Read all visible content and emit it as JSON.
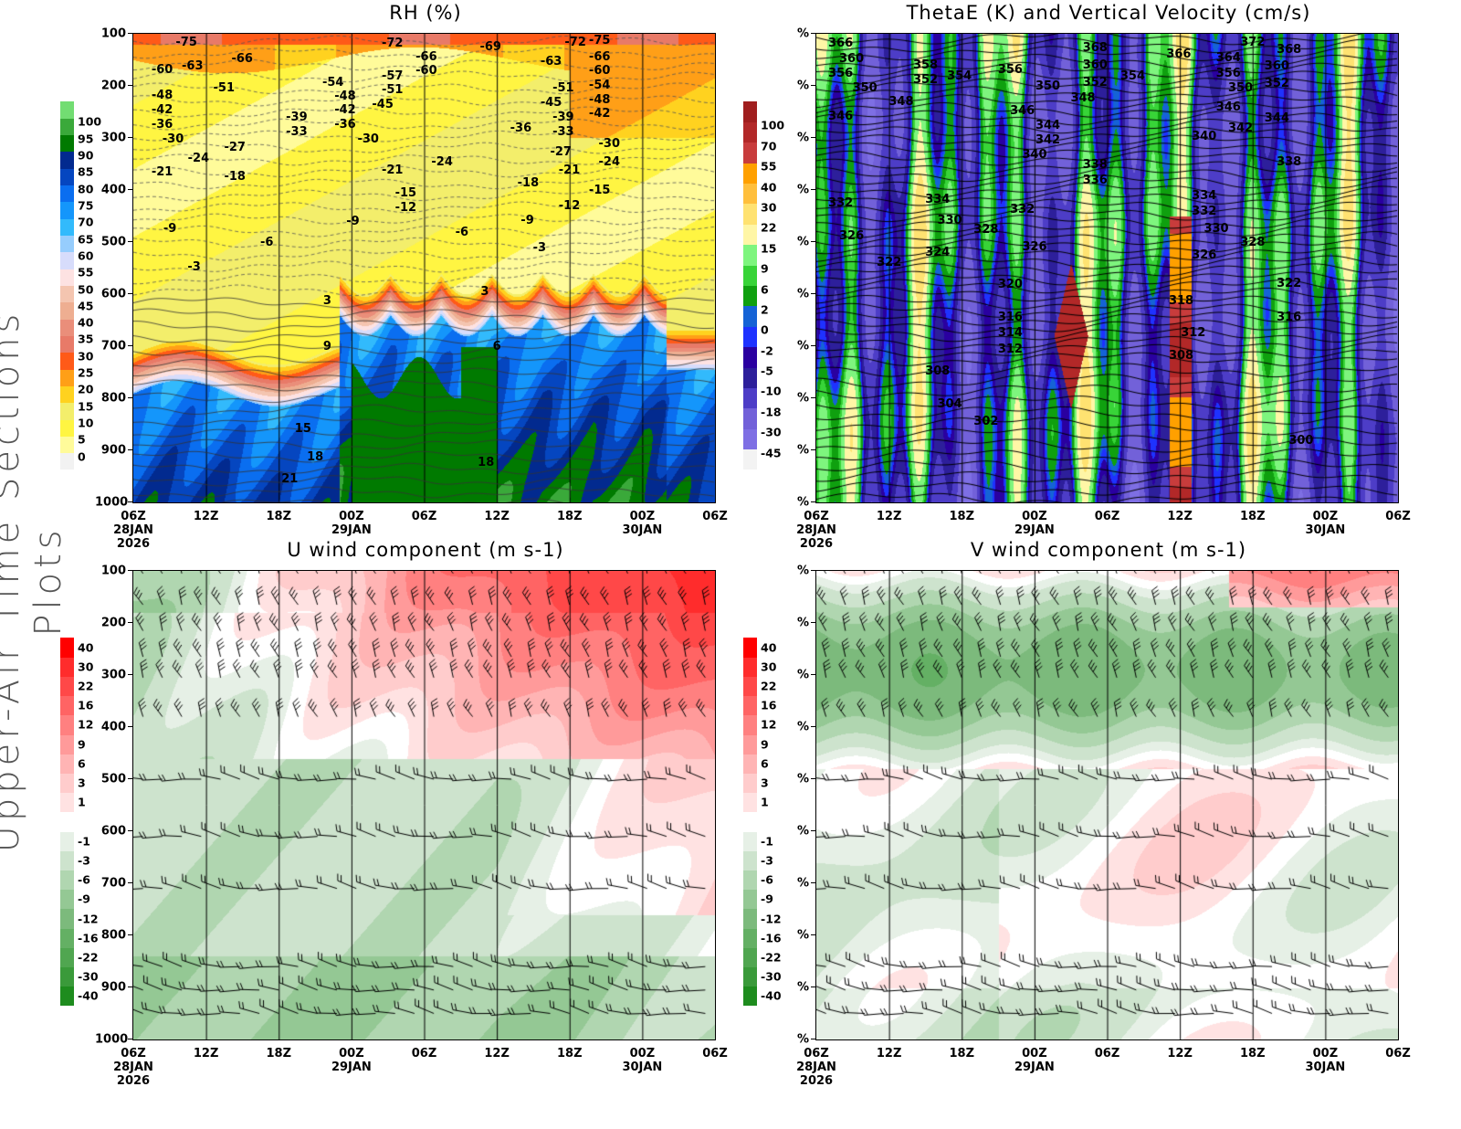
{
  "side_title": "Upper-Air Time Sections Plots",
  "time_ticks": [
    "06Z",
    "12Z",
    "18Z",
    "00Z",
    "06Z",
    "12Z",
    "18Z",
    "00Z",
    "06Z"
  ],
  "date_labels": [
    {
      "index": 0,
      "lines": [
        "28JAN",
        "2026"
      ]
    },
    {
      "index": 3,
      "lines": [
        "29JAN"
      ]
    },
    {
      "index": 7,
      "lines": [
        "30JAN"
      ]
    }
  ],
  "chart_data": [
    {
      "id": "rh",
      "type": "heatmap",
      "title": "RH (%)",
      "x_range_hours": [
        0,
        48
      ],
      "ylim": [
        1000,
        100
      ],
      "y_ticks": [
        "100",
        "200",
        "300",
        "400",
        "500",
        "600",
        "700",
        "800",
        "900",
        "1000"
      ],
      "colorbar": {
        "labels": [
          "0",
          "5",
          "10",
          "15",
          "20",
          "25",
          "30",
          "35",
          "40",
          "45",
          "50",
          "55",
          "60",
          "65",
          "70",
          "75",
          "80",
          "85",
          "90",
          "95",
          "100"
        ],
        "colors": [
          "#f2f2f2",
          "#fffb9a",
          "#fff542",
          "#f3ee6b",
          "#ffd21f",
          "#ff9f17",
          "#ff5a18",
          "#e87a68",
          "#ea8e7a",
          "#eeae91",
          "#f4c5b0",
          "#fde2e2",
          "#d7dcfb",
          "#96cdfd",
          "#32bafc",
          "#1496fb",
          "#0a6ef0",
          "#0546c0",
          "#022a8f",
          "#007a00",
          "#3aa93a",
          "#72dd72"
        ]
      },
      "contour_labels": [
        {
          "t": 4.4,
          "p": 116,
          "v": "-75"
        },
        {
          "t": 9.0,
          "p": 149,
          "v": "-66"
        },
        {
          "t": 21.4,
          "p": 118,
          "v": "-72"
        },
        {
          "t": 29.5,
          "p": 126,
          "v": "-69"
        },
        {
          "t": 36.5,
          "p": 116,
          "v": "-72"
        },
        {
          "t": 38.5,
          "p": 104,
          "v": "-75"
        },
        {
          "t": 2.4,
          "p": 170,
          "v": "-60"
        },
        {
          "t": 4.9,
          "p": 162,
          "v": "-63"
        },
        {
          "t": 24.2,
          "p": 145,
          "v": "-66"
        },
        {
          "t": 24.2,
          "p": 170,
          "v": "-60"
        },
        {
          "t": 34.5,
          "p": 154,
          "v": "-63"
        },
        {
          "t": 38.5,
          "p": 145,
          "v": "-66"
        },
        {
          "t": 38.5,
          "p": 170,
          "v": "-60"
        },
        {
          "t": 38.5,
          "p": 190,
          "v": "-54"
        },
        {
          "t": 21.4,
          "p": 182,
          "v": "-57"
        },
        {
          "t": 16.5,
          "p": 193,
          "v": "-54"
        },
        {
          "t": 7.5,
          "p": 205,
          "v": "-51"
        },
        {
          "t": 21.4,
          "p": 205,
          "v": "-51"
        },
        {
          "t": 35.5,
          "p": 205,
          "v": "-51"
        },
        {
          "t": 38.5,
          "p": 218,
          "v": "-48"
        },
        {
          "t": 2.4,
          "p": 218,
          "v": "-48"
        },
        {
          "t": 17.5,
          "p": 220,
          "v": "-48"
        },
        {
          "t": 20.6,
          "p": 233,
          "v": "-45"
        },
        {
          "t": 34.5,
          "p": 233,
          "v": "-45"
        },
        {
          "t": 2.4,
          "p": 247,
          "v": "-42"
        },
        {
          "t": 17.5,
          "p": 247,
          "v": "-42"
        },
        {
          "t": 38.5,
          "p": 247,
          "v": "-42"
        },
        {
          "t": 2.4,
          "p": 274,
          "v": "-36"
        },
        {
          "t": 17.5,
          "p": 274,
          "v": "-36"
        },
        {
          "t": 32.0,
          "p": 282,
          "v": "-36"
        },
        {
          "t": 13.5,
          "p": 261,
          "v": "-39"
        },
        {
          "t": 35.5,
          "p": 261,
          "v": "-39"
        },
        {
          "t": 13.5,
          "p": 288,
          "v": "-33"
        },
        {
          "t": 35.5,
          "p": 288,
          "v": "-33"
        },
        {
          "t": 3.3,
          "p": 303,
          "v": "-30"
        },
        {
          "t": 19.4,
          "p": 303,
          "v": "-30"
        },
        {
          "t": 39.3,
          "p": 312,
          "v": "-30"
        },
        {
          "t": 8.4,
          "p": 319,
          "v": "-27"
        },
        {
          "t": 35.3,
          "p": 328,
          "v": "-27"
        },
        {
          "t": 5.4,
          "p": 340,
          "v": "-24"
        },
        {
          "t": 25.5,
          "p": 347,
          "v": "-24"
        },
        {
          "t": 39.3,
          "p": 347,
          "v": "-24"
        },
        {
          "t": 2.4,
          "p": 365,
          "v": "-21"
        },
        {
          "t": 21.4,
          "p": 363,
          "v": "-21"
        },
        {
          "t": 36.0,
          "p": 363,
          "v": "-21"
        },
        {
          "t": 8.4,
          "p": 375,
          "v": "-18"
        },
        {
          "t": 32.6,
          "p": 386,
          "v": "-18"
        },
        {
          "t": 22.5,
          "p": 407,
          "v": "-15"
        },
        {
          "t": 38.5,
          "p": 400,
          "v": "-15"
        },
        {
          "t": 22.5,
          "p": 432,
          "v": "-12"
        },
        {
          "t": 36.0,
          "p": 430,
          "v": "-12"
        },
        {
          "t": 3.0,
          "p": 475,
          "v": "-9"
        },
        {
          "t": 18.1,
          "p": 461,
          "v": "-9"
        },
        {
          "t": 32.5,
          "p": 459,
          "v": "-9"
        },
        {
          "t": 11.0,
          "p": 500,
          "v": "-6"
        },
        {
          "t": 27.1,
          "p": 482,
          "v": "-6"
        },
        {
          "t": 5.0,
          "p": 549,
          "v": "-3"
        },
        {
          "t": 33.5,
          "p": 512,
          "v": "-3"
        },
        {
          "t": 16.0,
          "p": 614,
          "v": "3"
        },
        {
          "t": 29.0,
          "p": 596,
          "v": "3"
        },
        {
          "t": 16.0,
          "p": 700,
          "v": "9"
        },
        {
          "t": 30.0,
          "p": 700,
          "v": "6"
        },
        {
          "t": 14.0,
          "p": 858,
          "v": "15"
        },
        {
          "t": 15.0,
          "p": 914,
          "v": "18"
        },
        {
          "t": 29.1,
          "p": 923,
          "v": "18"
        },
        {
          "t": 12.9,
          "p": 956,
          "v": "21"
        }
      ]
    },
    {
      "id": "thetae",
      "type": "heatmap",
      "title": "ThetaE (K) and Vertical Velocity (cm/s)",
      "x_range_hours": [
        0,
        48
      ],
      "y_ticks": [
        "%",
        "%",
        "%",
        "%",
        "%",
        "%",
        "%",
        "%",
        "%",
        "%"
      ],
      "colorbar": {
        "labels": [
          "-45",
          "-30",
          "-18",
          "-10",
          "-5",
          "-2",
          "0",
          "2",
          "6",
          "9",
          "15",
          "22",
          "30",
          "40",
          "55",
          "70",
          "100"
        ],
        "colors": [
          "#f3f3f3",
          "#7e6fe4",
          "#7261d9",
          "#4d3dc7",
          "#2d1f9b",
          "#2a00a0",
          "#1e32ff",
          "#1563d6",
          "#0fa00f",
          "#38d438",
          "#7ef57e",
          "#fff6a6",
          "#ffe271",
          "#ffbf3c",
          "#ffa000",
          "#c83c3c",
          "#b22828",
          "#a01e1e"
        ]
      },
      "contour_labels": [
        {
          "t": 2.0,
          "p": 118,
          "v": "366"
        },
        {
          "t": 2.9,
          "p": 149,
          "v": "360"
        },
        {
          "t": 2.0,
          "p": 170,
          "v": "356"
        },
        {
          "t": 4.0,
          "p": 205,
          "v": "350"
        },
        {
          "t": 2.0,
          "p": 258,
          "v": "346"
        },
        {
          "t": 9.0,
          "p": 161,
          "v": "358"
        },
        {
          "t": 9.0,
          "p": 189,
          "v": "352"
        },
        {
          "t": 11.8,
          "p": 181,
          "v": "354"
        },
        {
          "t": 16.0,
          "p": 170,
          "v": "356"
        },
        {
          "t": 7.0,
          "p": 230,
          "v": "348"
        },
        {
          "t": 19.1,
          "p": 200,
          "v": "350"
        },
        {
          "t": 22.0,
          "p": 223,
          "v": "348"
        },
        {
          "t": 23.0,
          "p": 128,
          "v": "368"
        },
        {
          "t": 23.0,
          "p": 161,
          "v": "360"
        },
        {
          "t": 23.0,
          "p": 193,
          "v": "352"
        },
        {
          "t": 26.1,
          "p": 182,
          "v": "354"
        },
        {
          "t": 29.9,
          "p": 140,
          "v": "366"
        },
        {
          "t": 36.0,
          "p": 116,
          "v": "372"
        },
        {
          "t": 34.0,
          "p": 146,
          "v": "364"
        },
        {
          "t": 39.0,
          "p": 130,
          "v": "368"
        },
        {
          "t": 38.0,
          "p": 163,
          "v": "360"
        },
        {
          "t": 34.0,
          "p": 177,
          "v": "356"
        },
        {
          "t": 35.0,
          "p": 204,
          "v": "350"
        },
        {
          "t": 38.0,
          "p": 196,
          "v": "352"
        },
        {
          "t": 17.0,
          "p": 249,
          "v": "346"
        },
        {
          "t": 19.1,
          "p": 277,
          "v": "344"
        },
        {
          "t": 19.1,
          "p": 303,
          "v": "342"
        },
        {
          "t": 18.0,
          "p": 332,
          "v": "340"
        },
        {
          "t": 23.0,
          "p": 351,
          "v": "338"
        },
        {
          "t": 23.0,
          "p": 381,
          "v": "336"
        },
        {
          "t": 32.0,
          "p": 298,
          "v": "340"
        },
        {
          "t": 34.0,
          "p": 242,
          "v": "346"
        },
        {
          "t": 35.0,
          "p": 282,
          "v": "342"
        },
        {
          "t": 38.0,
          "p": 263,
          "v": "344"
        },
        {
          "t": 39.0,
          "p": 346,
          "v": "338"
        },
        {
          "t": 2.0,
          "p": 425,
          "v": "332"
        },
        {
          "t": 2.9,
          "p": 488,
          "v": "326"
        },
        {
          "t": 10.0,
          "p": 419,
          "v": "334"
        },
        {
          "t": 11.0,
          "p": 458,
          "v": "330"
        },
        {
          "t": 14.0,
          "p": 477,
          "v": "328"
        },
        {
          "t": 17.0,
          "p": 437,
          "v": "332"
        },
        {
          "t": 32.0,
          "p": 412,
          "v": "334"
        },
        {
          "t": 32.0,
          "p": 442,
          "v": "332"
        },
        {
          "t": 33.0,
          "p": 474,
          "v": "330"
        },
        {
          "t": 36.0,
          "p": 500,
          "v": "328"
        },
        {
          "t": 32.0,
          "p": 526,
          "v": "326"
        },
        {
          "t": 6.0,
          "p": 539,
          "v": "322"
        },
        {
          "t": 10.0,
          "p": 521,
          "v": "324"
        },
        {
          "t": 18.0,
          "p": 509,
          "v": "326"
        },
        {
          "t": 16.0,
          "p": 582,
          "v": "320"
        },
        {
          "t": 39.0,
          "p": 579,
          "v": "322"
        },
        {
          "t": 30.1,
          "p": 614,
          "v": "318"
        },
        {
          "t": 16.0,
          "p": 644,
          "v": "316"
        },
        {
          "t": 39.0,
          "p": 644,
          "v": "316"
        },
        {
          "t": 16.0,
          "p": 675,
          "v": "314"
        },
        {
          "t": 16.0,
          "p": 707,
          "v": "312"
        },
        {
          "t": 31.1,
          "p": 674,
          "v": "312"
        },
        {
          "t": 10.0,
          "p": 749,
          "v": "308"
        },
        {
          "t": 30.1,
          "p": 719,
          "v": "308"
        },
        {
          "t": 11.0,
          "p": 812,
          "v": "304"
        },
        {
          "t": 14.0,
          "p": 844,
          "v": "302"
        },
        {
          "t": 40.0,
          "p": 882,
          "v": "300"
        }
      ]
    },
    {
      "id": "u",
      "type": "heatmap",
      "title": "U wind component (m s-1)",
      "x_range_hours": [
        0,
        48
      ],
      "y_ticks": [
        "100",
        "200",
        "300",
        "400",
        "500",
        "600",
        "700",
        "800",
        "900",
        "1000"
      ],
      "colorbar": {
        "labels": [
          "-40",
          "-30",
          "-22",
          "-16",
          "-12",
          "-9",
          "-6",
          "-3",
          "-1",
          "",
          "1",
          "3",
          "6",
          "9",
          "12",
          "16",
          "22",
          "30",
          "40"
        ],
        "colors": [
          "#1e8c1e",
          "#3a9a3a",
          "#50a650",
          "#64b064",
          "#7cba7c",
          "#94c894",
          "#b0d6b0",
          "#cde3cd",
          "#e6f0e6",
          "#ffffff",
          "#ffe2e2",
          "#ffcccc",
          "#ffb4b4",
          "#ff9a9a",
          "#ff8080",
          "#ff6464",
          "#ff4848",
          "#ff2c2c",
          "#ff0000"
        ]
      },
      "contour_labels": []
    },
    {
      "id": "v",
      "type": "heatmap",
      "title": "V wind component (m s-1)",
      "x_range_hours": [
        0,
        48
      ],
      "y_ticks": [
        "%",
        "%",
        "%",
        "%",
        "%",
        "%",
        "%",
        "%",
        "%",
        "%"
      ],
      "colorbar": {
        "labels": [
          "-40",
          "-30",
          "-22",
          "-16",
          "-12",
          "-9",
          "-6",
          "-3",
          "-1",
          "",
          "1",
          "3",
          "6",
          "9",
          "12",
          "16",
          "22",
          "30",
          "40"
        ],
        "colors": [
          "#1e8c1e",
          "#3a9a3a",
          "#50a650",
          "#64b064",
          "#7cba7c",
          "#94c894",
          "#b0d6b0",
          "#cde3cd",
          "#e6f0e6",
          "#ffffff",
          "#ffe2e2",
          "#ffcccc",
          "#ffb4b4",
          "#ff9a9a",
          "#ff8080",
          "#ff6464",
          "#ff4848",
          "#ff2c2c",
          "#ff0000"
        ]
      },
      "contour_labels": []
    }
  ]
}
